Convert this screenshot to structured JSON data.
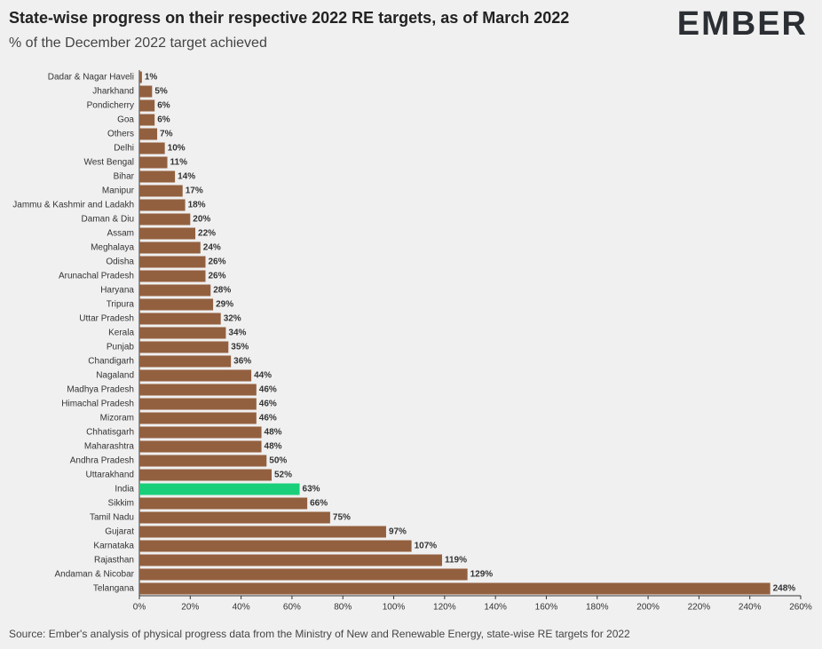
{
  "chart_data": {
    "type": "barh",
    "title": "State-wise progress on their respective 2022 RE targets, as of March 2022",
    "subtitle": "% of the December 2022 target achieved",
    "logo": "EMBER",
    "source": "Source: Ember's analysis of physical progress data from the Ministry of New and Renewable Energy, state-wise RE targets for 2022",
    "categories": [
      "Dadar & Nagar Haveli",
      "Jharkhand",
      "Pondicherry",
      "Goa",
      "Others",
      "Delhi",
      "West Bengal",
      "Bihar",
      "Manipur",
      "Jammu & Kashmir and Ladakh",
      "Daman & Diu",
      "Assam",
      "Meghalaya",
      "Odisha",
      "Arunachal Pradesh",
      "Haryana",
      "Tripura",
      "Uttar Pradesh",
      "Kerala",
      "Punjab",
      "Chandigarh",
      "Nagaland",
      "Madhya Pradesh",
      "Himachal Pradesh",
      "Mizoram",
      "Chhatisgarh",
      "Maharashtra",
      "Andhra Pradesh",
      "Uttarakhand",
      "India",
      "Sikkim",
      "Tamil Nadu",
      "Gujarat",
      "Karnataka",
      "Rajasthan",
      "Andaman & Nicobar",
      "Telangana"
    ],
    "values": [
      1,
      5,
      6,
      6,
      7,
      10,
      11,
      14,
      17,
      18,
      20,
      22,
      24,
      26,
      26,
      28,
      29,
      32,
      34,
      35,
      36,
      44,
      46,
      46,
      46,
      48,
      48,
      50,
      52,
      63,
      66,
      75,
      97,
      107,
      119,
      129,
      248
    ],
    "value_labels": [
      "1%",
      "5%",
      "6%",
      "6%",
      "7%",
      "10%",
      "11%",
      "14%",
      "17%",
      "18%",
      "20%",
      "22%",
      "24%",
      "26%",
      "26%",
      "28%",
      "29%",
      "32%",
      "34%",
      "35%",
      "36%",
      "44%",
      "46%",
      "46%",
      "46%",
      "48%",
      "48%",
      "50%",
      "52%",
      "63%",
      "66%",
      "75%",
      "97%",
      "107%",
      "119%",
      "129%",
      "248%"
    ],
    "colors": [
      "#93603f",
      "#93603f",
      "#93603f",
      "#93603f",
      "#93603f",
      "#93603f",
      "#93603f",
      "#93603f",
      "#93603f",
      "#93603f",
      "#93603f",
      "#93603f",
      "#93603f",
      "#93603f",
      "#93603f",
      "#93603f",
      "#93603f",
      "#93603f",
      "#93603f",
      "#93603f",
      "#93603f",
      "#93603f",
      "#93603f",
      "#93603f",
      "#93603f",
      "#93603f",
      "#93603f",
      "#93603f",
      "#93603f",
      "#19cf7a",
      "#93603f",
      "#93603f",
      "#93603f",
      "#93603f",
      "#93603f",
      "#93603f",
      "#93603f"
    ],
    "xlim": [
      0,
      260
    ],
    "xticks": [
      {
        "value": 0,
        "label": "0%"
      },
      {
        "value": 20,
        "label": "20%"
      },
      {
        "value": 40,
        "label": "40%"
      },
      {
        "value": 60,
        "label": "60%"
      },
      {
        "value": 80,
        "label": "80%"
      },
      {
        "value": 100,
        "label": "100%"
      },
      {
        "value": 120,
        "label": "120%"
      },
      {
        "value": 140,
        "label": "140%"
      },
      {
        "value": 160,
        "label": "160%"
      },
      {
        "value": 180,
        "label": "180%"
      },
      {
        "value": 200,
        "label": "200%"
      },
      {
        "value": 220,
        "label": "220%"
      },
      {
        "value": 240,
        "label": "240%"
      },
      {
        "value": 260,
        "label": "260%"
      }
    ]
  }
}
